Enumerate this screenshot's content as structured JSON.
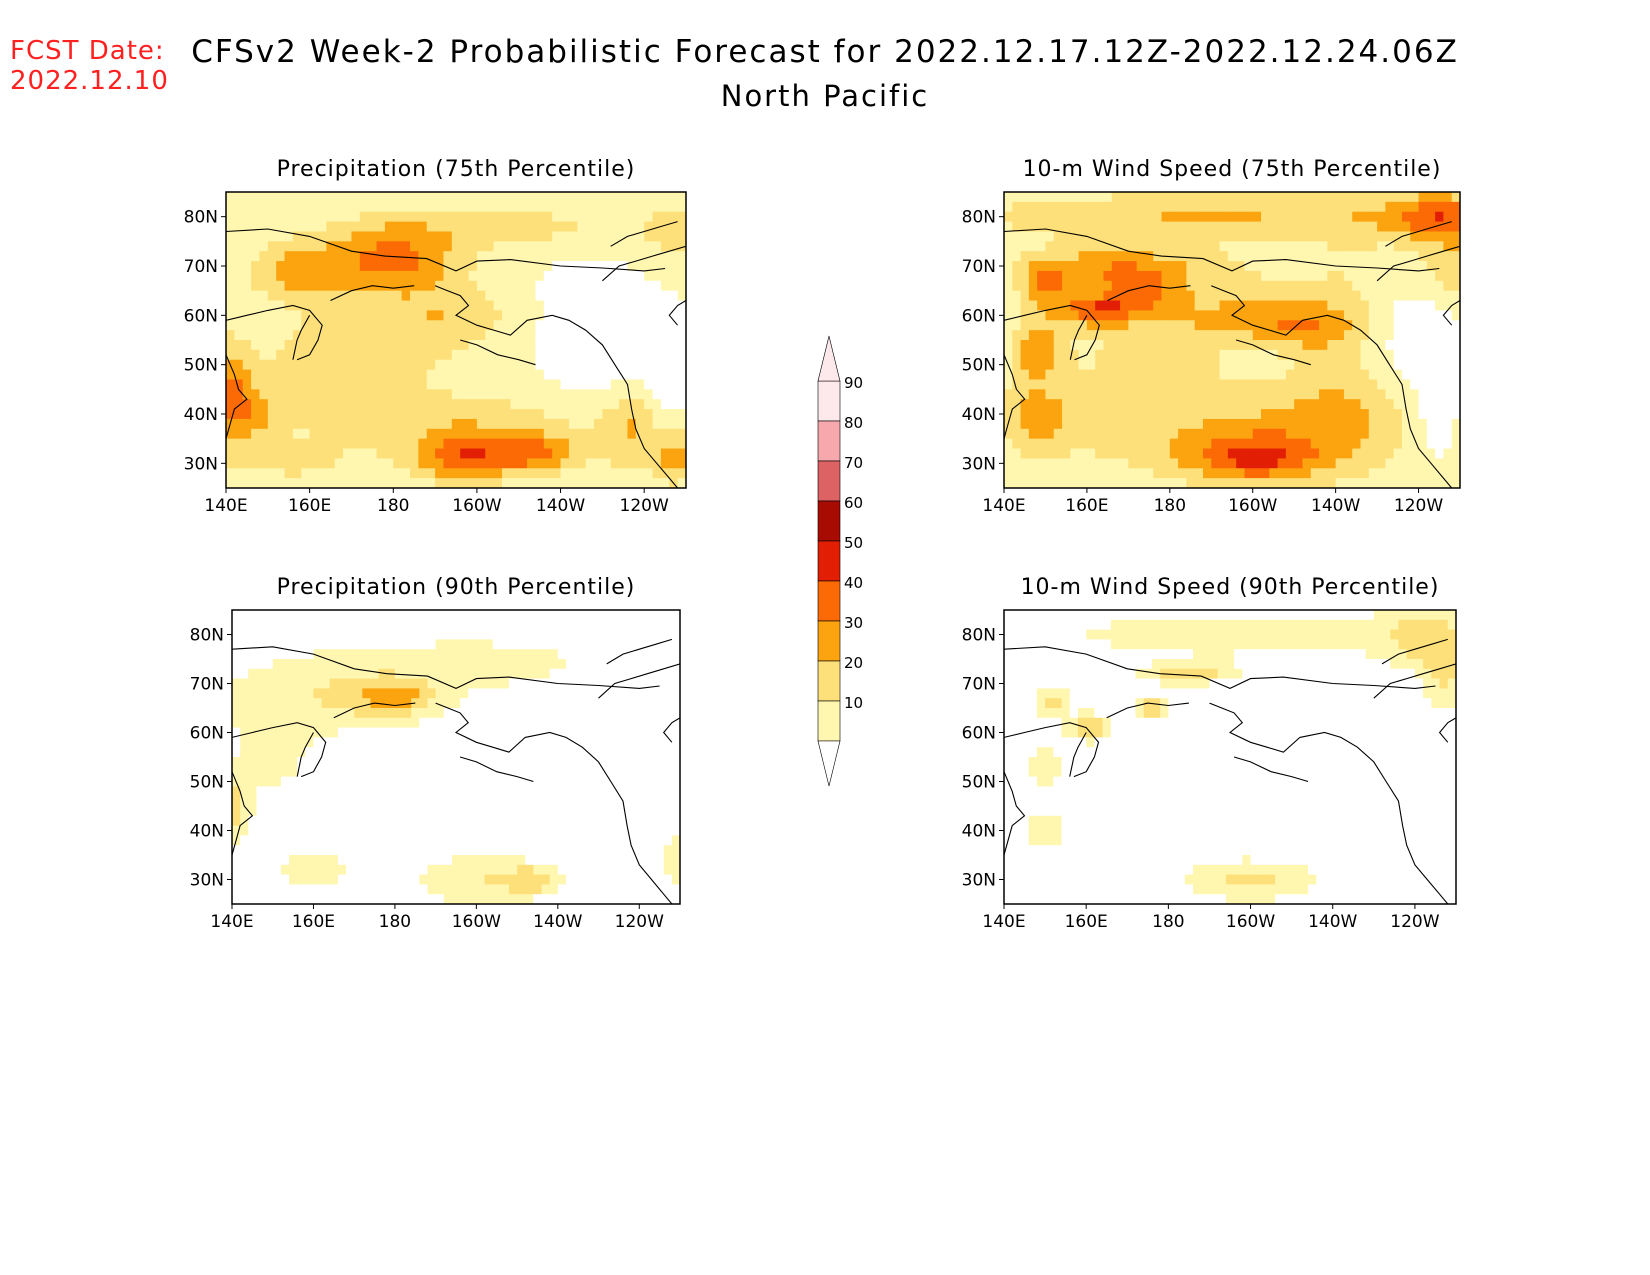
{
  "header": {
    "fcst_label": "FCST Date:",
    "fcst_date": "2022.12.10",
    "title": "CFSv2 Week-2 Probabilistic Forecast for 2022.12.17.12Z-2022.12.24.06Z",
    "subtitle": "North Pacific"
  },
  "panels": [
    {
      "title": "Precipitation (75th Percentile)"
    },
    {
      "title": "10-m Wind Speed (75th Percentile)"
    },
    {
      "title": "Precipitation (90th Percentile)"
    },
    {
      "title": "10-m Wind Speed (90th Percentile)"
    }
  ],
  "axes": {
    "lon_ticks": [
      "140E",
      "160E",
      "180",
      "160W",
      "140W",
      "120W"
    ],
    "lat_ticks": [
      "80N",
      "70N",
      "60N",
      "50N",
      "40N",
      "30N"
    ]
  },
  "colorbar": {
    "levels": [
      "10",
      "20",
      "30",
      "40",
      "50",
      "60",
      "70",
      "80",
      "90"
    ],
    "colors": [
      "#ffffff",
      "#fff6b0",
      "#fde07a",
      "#fca40f",
      "#fc6a05",
      "#e21f04",
      "#a80b02",
      "#dc6263",
      "#f6a8ad",
      "#fde9ec"
    ]
  }
}
